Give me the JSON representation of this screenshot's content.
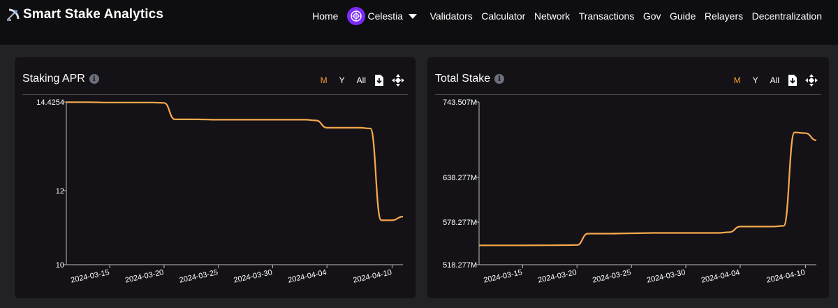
{
  "header": {
    "brand": "Smart Stake Analytics",
    "brand_icon": "satellite-dish-icon",
    "nav": {
      "home": "Home",
      "network": "Celestia",
      "validators": "Validators",
      "calculator": "Calculator",
      "network_link": "Network",
      "transactions": "Transactions",
      "gov": "Gov",
      "guide": "Guide",
      "relayers": "Relayers",
      "decentralization": "Decentralization"
    }
  },
  "colors": {
    "accent": "#f79a3a",
    "line": "#f7a94d",
    "chain": "#7b2bf9"
  },
  "panels": [
    {
      "title": "Staking APR",
      "ranges": [
        "M",
        "Y",
        "All"
      ],
      "active_range": "M"
    },
    {
      "title": "Total Stake",
      "ranges": [
        "M",
        "Y",
        "All"
      ],
      "active_range": "M"
    }
  ],
  "chart_data": [
    {
      "type": "line",
      "title": "Staking APR",
      "x_ticks": [
        "2024-03-15",
        "2024-03-20",
        "2024-03-25",
        "2024-03-30",
        "2024-04-04",
        "2024-04-10"
      ],
      "y_ticks": [
        "14.4254",
        "12",
        "10"
      ],
      "ylim": [
        10,
        14.4254
      ],
      "xlim": [
        "2024-03-11",
        "2024-04-11"
      ],
      "series": [
        {
          "x": [
            "2024-03-11",
            "2024-03-13",
            "2024-03-15",
            "2024-03-17",
            "2024-03-19",
            "2024-03-20",
            "2024-03-21",
            "2024-03-23",
            "2024-03-25",
            "2024-03-27",
            "2024-03-29",
            "2024-03-31",
            "2024-04-02",
            "2024-04-03",
            "2024-04-04",
            "2024-04-05",
            "2024-04-07",
            "2024-04-08",
            "2024-04-09",
            "2024-04-10",
            "2024-04-11"
          ],
          "values": [
            14.42,
            14.42,
            14.41,
            14.41,
            14.41,
            14.4,
            13.95,
            13.95,
            13.94,
            13.94,
            13.94,
            13.94,
            13.94,
            13.92,
            13.72,
            13.72,
            13.72,
            13.7,
            11.2,
            11.2,
            11.3
          ]
        }
      ]
    },
    {
      "type": "line",
      "title": "Total Stake",
      "x_ticks": [
        "2024-03-15",
        "2024-03-20",
        "2024-03-25",
        "2024-03-30",
        "2024-04-04",
        "2024-04-10"
      ],
      "y_ticks": [
        "743.507M",
        "638.277M",
        "578.277M",
        "518.277M"
      ],
      "series": [
        {
          "x": [
            "2024-03-11",
            "2024-03-13",
            "2024-03-15",
            "2024-03-17",
            "2024-03-19",
            "2024-03-20",
            "2024-03-21",
            "2024-03-23",
            "2024-03-25",
            "2024-03-27",
            "2024-03-29",
            "2024-03-31",
            "2024-04-02",
            "2024-04-03",
            "2024-04-04",
            "2024-04-05",
            "2024-04-07",
            "2024-04-08",
            "2024-04-09",
            "2024-04-10",
            "2024-04-11"
          ],
          "values": [
            545.5,
            545.5,
            545.5,
            545.6,
            545.8,
            546,
            562,
            562,
            562.5,
            563,
            563,
            563,
            563,
            564,
            572,
            572,
            572,
            573,
            701,
            700,
            690
          ]
        }
      ]
    }
  ]
}
